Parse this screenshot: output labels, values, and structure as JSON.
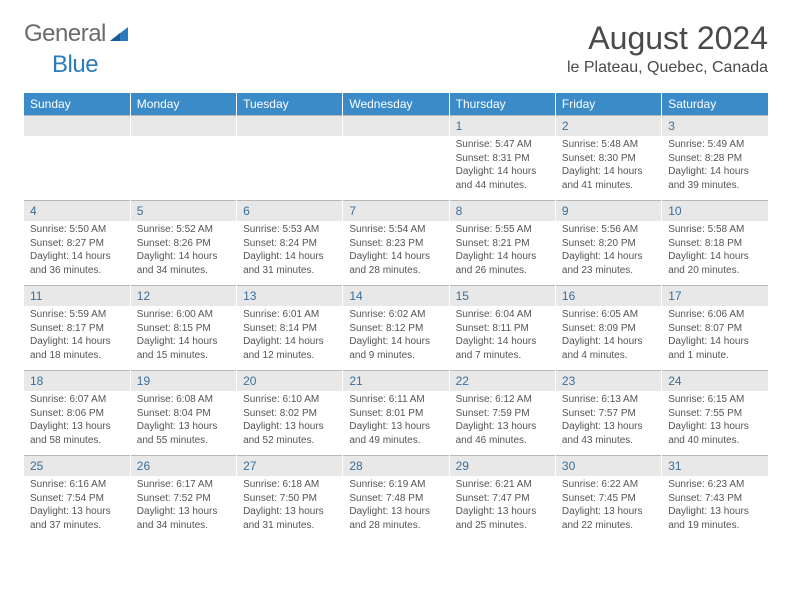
{
  "logo": {
    "general": "General",
    "blue": "Blue"
  },
  "title": "August 2024",
  "location": "le Plateau, Quebec, Canada",
  "colors": {
    "header_bg": "#3b8bc9",
    "header_text": "#ffffff",
    "daynum_bg": "#e8e8e8",
    "daynum_text": "#3b6f9a",
    "body_text": "#555555",
    "logo_gray": "#6b6b6b",
    "logo_blue": "#2b7bbf"
  },
  "day_headers": [
    "Sunday",
    "Monday",
    "Tuesday",
    "Wednesday",
    "Thursday",
    "Friday",
    "Saturday"
  ],
  "weeks": [
    {
      "nums": [
        "",
        "",
        "",
        "",
        "1",
        "2",
        "3"
      ],
      "cells": [
        {
          "sunrise": "",
          "sunset": "",
          "daylight": ""
        },
        {
          "sunrise": "",
          "sunset": "",
          "daylight": ""
        },
        {
          "sunrise": "",
          "sunset": "",
          "daylight": ""
        },
        {
          "sunrise": "",
          "sunset": "",
          "daylight": ""
        },
        {
          "sunrise": "Sunrise: 5:47 AM",
          "sunset": "Sunset: 8:31 PM",
          "daylight": "Daylight: 14 hours and 44 minutes."
        },
        {
          "sunrise": "Sunrise: 5:48 AM",
          "sunset": "Sunset: 8:30 PM",
          "daylight": "Daylight: 14 hours and 41 minutes."
        },
        {
          "sunrise": "Sunrise: 5:49 AM",
          "sunset": "Sunset: 8:28 PM",
          "daylight": "Daylight: 14 hours and 39 minutes."
        }
      ]
    },
    {
      "nums": [
        "4",
        "5",
        "6",
        "7",
        "8",
        "9",
        "10"
      ],
      "cells": [
        {
          "sunrise": "Sunrise: 5:50 AM",
          "sunset": "Sunset: 8:27 PM",
          "daylight": "Daylight: 14 hours and 36 minutes."
        },
        {
          "sunrise": "Sunrise: 5:52 AM",
          "sunset": "Sunset: 8:26 PM",
          "daylight": "Daylight: 14 hours and 34 minutes."
        },
        {
          "sunrise": "Sunrise: 5:53 AM",
          "sunset": "Sunset: 8:24 PM",
          "daylight": "Daylight: 14 hours and 31 minutes."
        },
        {
          "sunrise": "Sunrise: 5:54 AM",
          "sunset": "Sunset: 8:23 PM",
          "daylight": "Daylight: 14 hours and 28 minutes."
        },
        {
          "sunrise": "Sunrise: 5:55 AM",
          "sunset": "Sunset: 8:21 PM",
          "daylight": "Daylight: 14 hours and 26 minutes."
        },
        {
          "sunrise": "Sunrise: 5:56 AM",
          "sunset": "Sunset: 8:20 PM",
          "daylight": "Daylight: 14 hours and 23 minutes."
        },
        {
          "sunrise": "Sunrise: 5:58 AM",
          "sunset": "Sunset: 8:18 PM",
          "daylight": "Daylight: 14 hours and 20 minutes."
        }
      ]
    },
    {
      "nums": [
        "11",
        "12",
        "13",
        "14",
        "15",
        "16",
        "17"
      ],
      "cells": [
        {
          "sunrise": "Sunrise: 5:59 AM",
          "sunset": "Sunset: 8:17 PM",
          "daylight": "Daylight: 14 hours and 18 minutes."
        },
        {
          "sunrise": "Sunrise: 6:00 AM",
          "sunset": "Sunset: 8:15 PM",
          "daylight": "Daylight: 14 hours and 15 minutes."
        },
        {
          "sunrise": "Sunrise: 6:01 AM",
          "sunset": "Sunset: 8:14 PM",
          "daylight": "Daylight: 14 hours and 12 minutes."
        },
        {
          "sunrise": "Sunrise: 6:02 AM",
          "sunset": "Sunset: 8:12 PM",
          "daylight": "Daylight: 14 hours and 9 minutes."
        },
        {
          "sunrise": "Sunrise: 6:04 AM",
          "sunset": "Sunset: 8:11 PM",
          "daylight": "Daylight: 14 hours and 7 minutes."
        },
        {
          "sunrise": "Sunrise: 6:05 AM",
          "sunset": "Sunset: 8:09 PM",
          "daylight": "Daylight: 14 hours and 4 minutes."
        },
        {
          "sunrise": "Sunrise: 6:06 AM",
          "sunset": "Sunset: 8:07 PM",
          "daylight": "Daylight: 14 hours and 1 minute."
        }
      ]
    },
    {
      "nums": [
        "18",
        "19",
        "20",
        "21",
        "22",
        "23",
        "24"
      ],
      "cells": [
        {
          "sunrise": "Sunrise: 6:07 AM",
          "sunset": "Sunset: 8:06 PM",
          "daylight": "Daylight: 13 hours and 58 minutes."
        },
        {
          "sunrise": "Sunrise: 6:08 AM",
          "sunset": "Sunset: 8:04 PM",
          "daylight": "Daylight: 13 hours and 55 minutes."
        },
        {
          "sunrise": "Sunrise: 6:10 AM",
          "sunset": "Sunset: 8:02 PM",
          "daylight": "Daylight: 13 hours and 52 minutes."
        },
        {
          "sunrise": "Sunrise: 6:11 AM",
          "sunset": "Sunset: 8:01 PM",
          "daylight": "Daylight: 13 hours and 49 minutes."
        },
        {
          "sunrise": "Sunrise: 6:12 AM",
          "sunset": "Sunset: 7:59 PM",
          "daylight": "Daylight: 13 hours and 46 minutes."
        },
        {
          "sunrise": "Sunrise: 6:13 AM",
          "sunset": "Sunset: 7:57 PM",
          "daylight": "Daylight: 13 hours and 43 minutes."
        },
        {
          "sunrise": "Sunrise: 6:15 AM",
          "sunset": "Sunset: 7:55 PM",
          "daylight": "Daylight: 13 hours and 40 minutes."
        }
      ]
    },
    {
      "nums": [
        "25",
        "26",
        "27",
        "28",
        "29",
        "30",
        "31"
      ],
      "cells": [
        {
          "sunrise": "Sunrise: 6:16 AM",
          "sunset": "Sunset: 7:54 PM",
          "daylight": "Daylight: 13 hours and 37 minutes."
        },
        {
          "sunrise": "Sunrise: 6:17 AM",
          "sunset": "Sunset: 7:52 PM",
          "daylight": "Daylight: 13 hours and 34 minutes."
        },
        {
          "sunrise": "Sunrise: 6:18 AM",
          "sunset": "Sunset: 7:50 PM",
          "daylight": "Daylight: 13 hours and 31 minutes."
        },
        {
          "sunrise": "Sunrise: 6:19 AM",
          "sunset": "Sunset: 7:48 PM",
          "daylight": "Daylight: 13 hours and 28 minutes."
        },
        {
          "sunrise": "Sunrise: 6:21 AM",
          "sunset": "Sunset: 7:47 PM",
          "daylight": "Daylight: 13 hours and 25 minutes."
        },
        {
          "sunrise": "Sunrise: 6:22 AM",
          "sunset": "Sunset: 7:45 PM",
          "daylight": "Daylight: 13 hours and 22 minutes."
        },
        {
          "sunrise": "Sunrise: 6:23 AM",
          "sunset": "Sunset: 7:43 PM",
          "daylight": "Daylight: 13 hours and 19 minutes."
        }
      ]
    }
  ]
}
